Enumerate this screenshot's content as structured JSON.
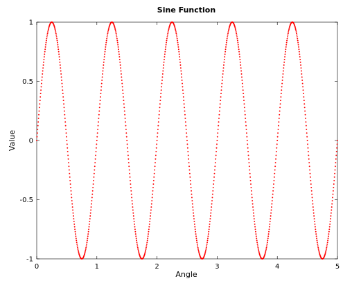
{
  "chart_data": {
    "type": "line",
    "title": "Sine Function",
    "xlabel": "Angle",
    "ylabel": "Value",
    "xlim": [
      0,
      5
    ],
    "ylim": [
      -1,
      1
    ],
    "x_ticks": [
      0,
      1,
      2,
      3,
      4,
      5
    ],
    "x_tick_labels": [
      "0",
      "1",
      "2",
      "3",
      "4",
      "5"
    ],
    "y_ticks": [
      -1,
      -0.5,
      0,
      0.5,
      1
    ],
    "y_tick_labels": [
      "-1",
      "-0.5",
      "0",
      "0.5",
      "1"
    ],
    "grid": false,
    "legend": "none",
    "series": [
      {
        "function": "sin(2*pi*x)",
        "x_start": 0,
        "x_end": 5,
        "x_step": 0.005,
        "color": "#ff0000",
        "marker": "dot"
      }
    ]
  }
}
